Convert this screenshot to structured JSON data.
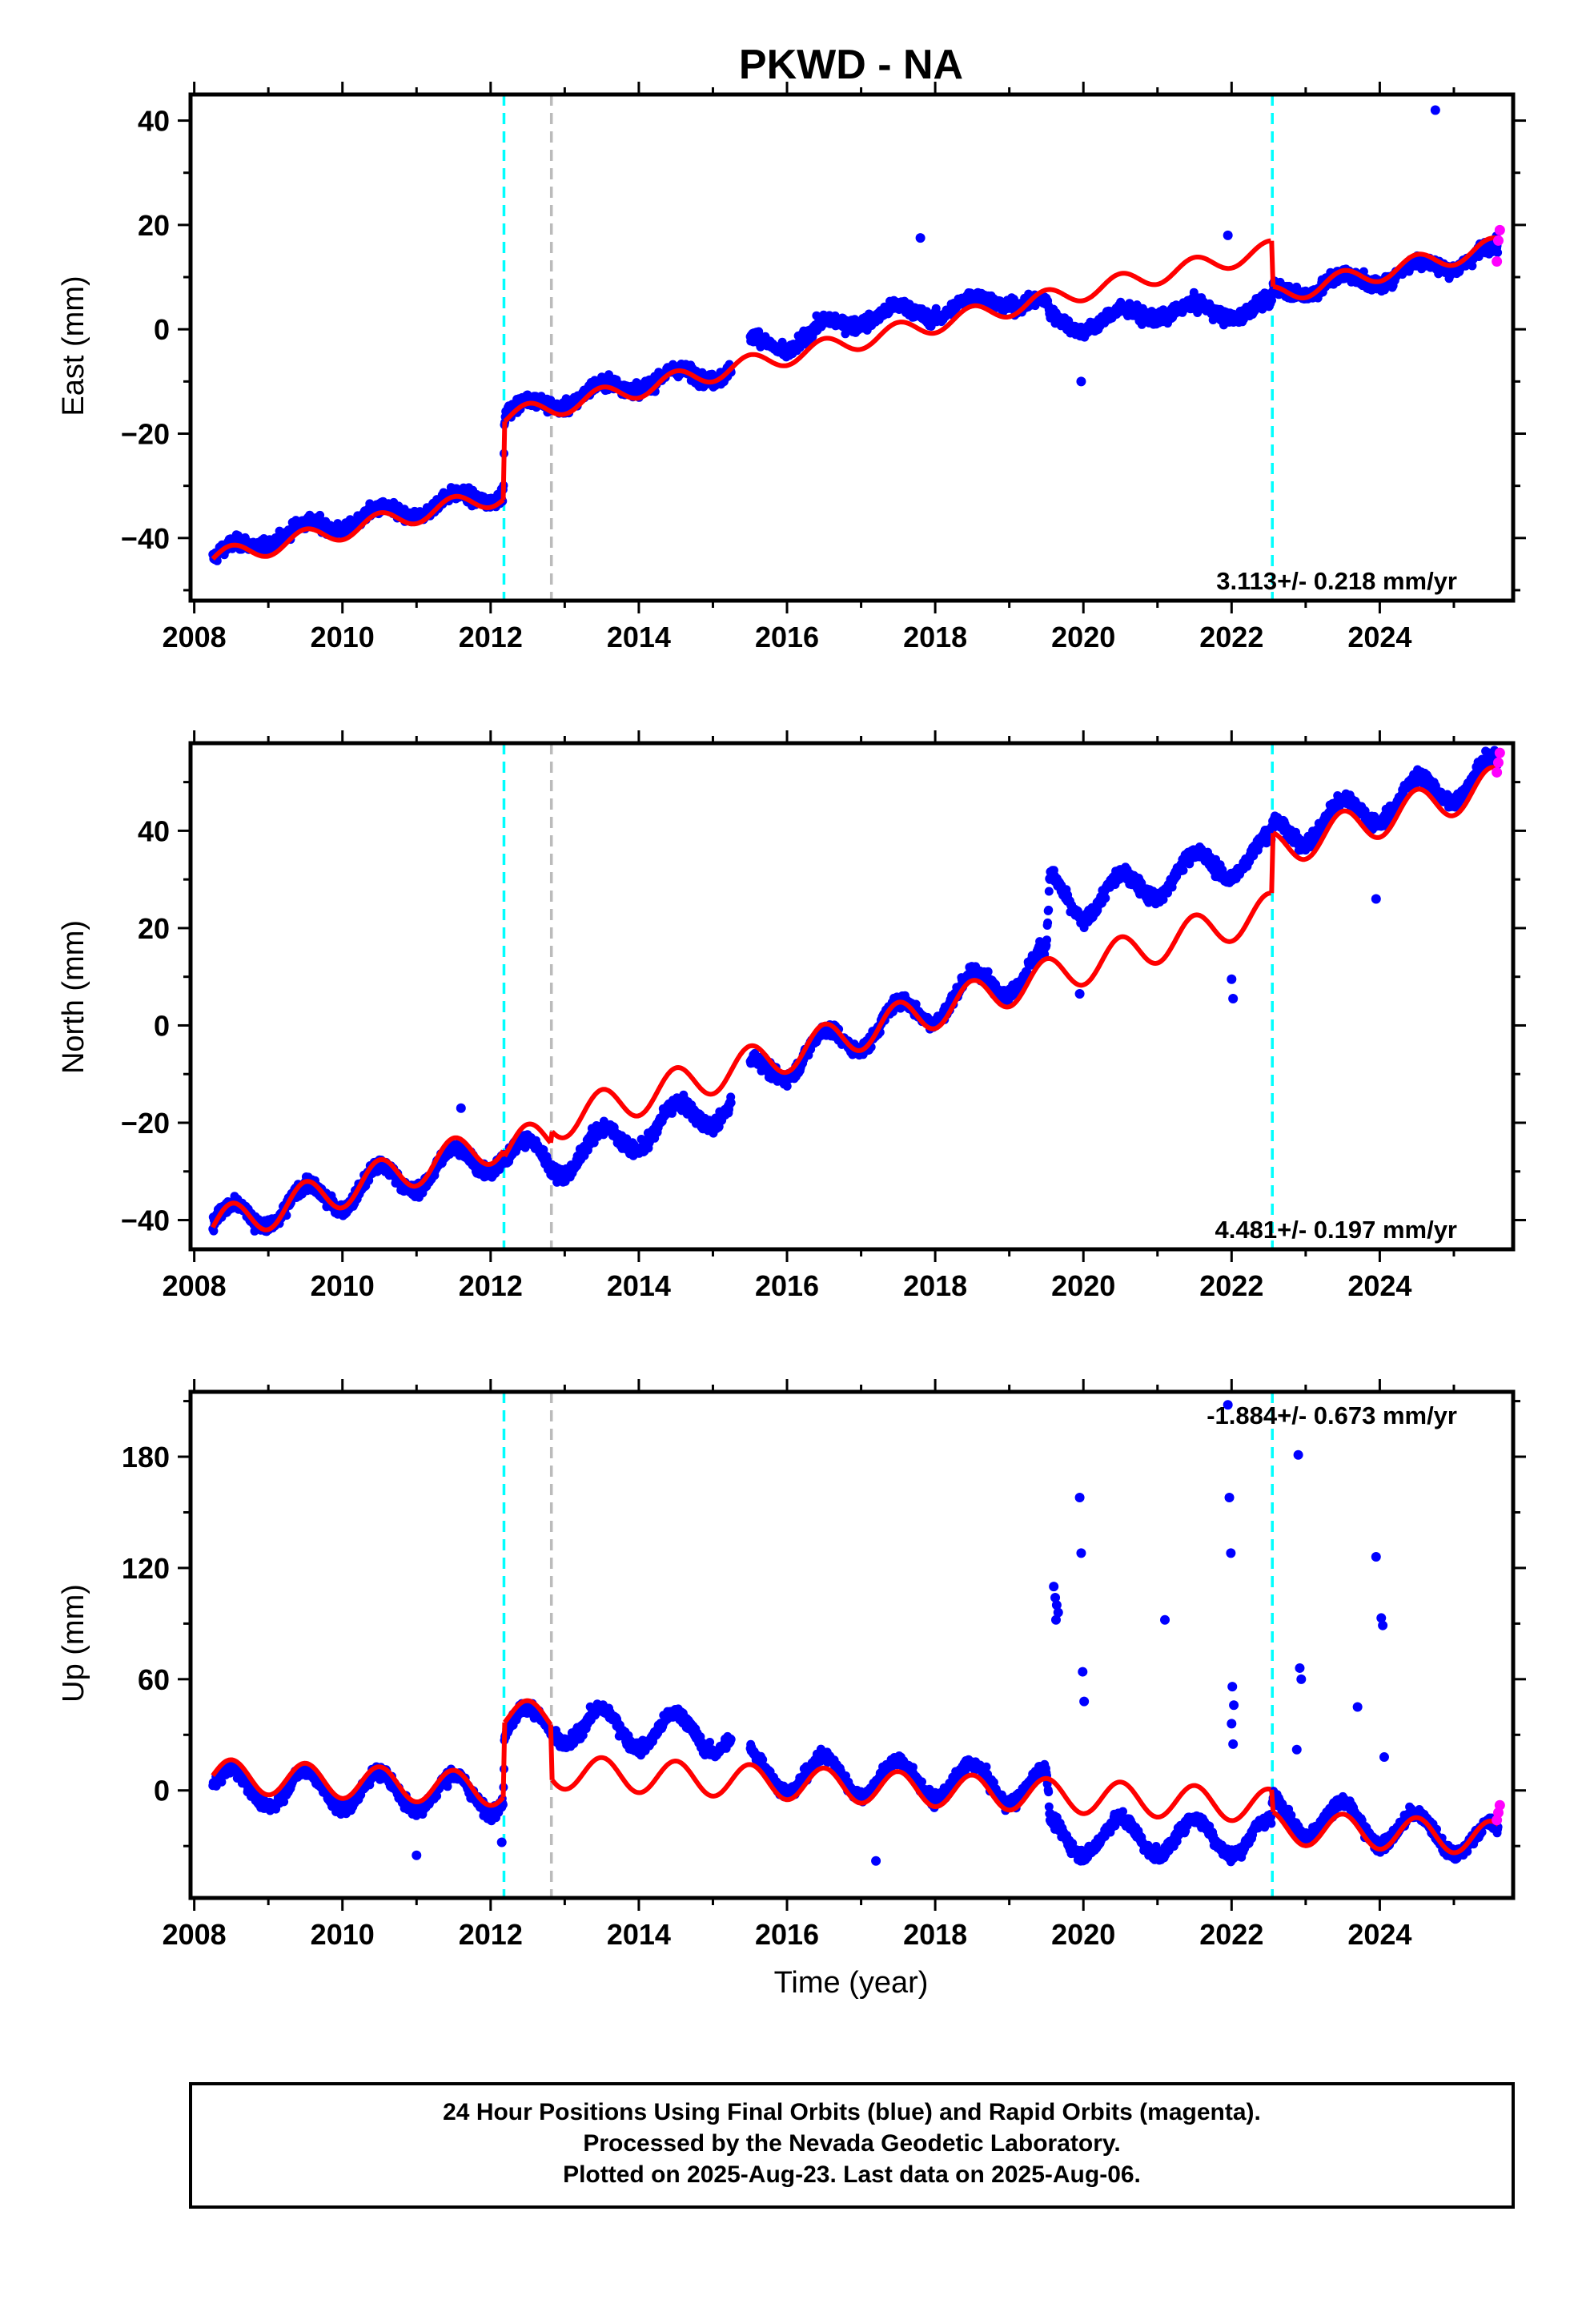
{
  "chart_data": {
    "type": "scatter",
    "title": "PKWD - NA",
    "xlabel": "Time (year)",
    "xlim": [
      2007.95,
      2025.8
    ],
    "x_ticks": [
      "2008",
      "2010",
      "2012",
      "2014",
      "2016",
      "2018",
      "2020",
      "2022",
      "2024"
    ],
    "colors": {
      "final_orbits": "#0000ff",
      "rapid_orbits": "#ff00ff",
      "model": "#ff0000",
      "equipment_change": "#00ffff",
      "other_event": "#bbbbbb"
    },
    "events": {
      "cyan_dashed": [
        2012.18,
        2022.55
      ],
      "gray_dashed": [
        2012.82
      ]
    },
    "panels": [
      {
        "id": "east",
        "ylabel": "East (mm)",
        "ylim": [
          -52,
          45
        ],
        "y_ticks": [
          "−40",
          "−20",
          "0",
          "20",
          "40"
        ],
        "rate": "3.113+/- 0.218 mm/yr",
        "rate_position": "bottom-right",
        "data_trend": [
          [
            2008.25,
            -44
          ],
          [
            2009,
            -40
          ],
          [
            2010,
            -37
          ],
          [
            2011,
            -34.5
          ],
          [
            2012.17,
            -31
          ],
          [
            2012.19,
            -16
          ],
          [
            2013,
            -13.5
          ],
          [
            2014,
            -10
          ],
          [
            2015.2,
            -8
          ],
          [
            2015.55,
            -2.5
          ],
          [
            2016,
            -3
          ],
          [
            2016.5,
            0
          ],
          [
            2017,
            2.5
          ],
          [
            2018,
            3.5
          ],
          [
            2019,
            6
          ],
          [
            2019.5,
            4
          ],
          [
            2019.55,
            1.5
          ],
          [
            2020,
            1
          ],
          [
            2021,
            3.5
          ],
          [
            2022,
            3.5
          ],
          [
            2022.54,
            4
          ],
          [
            2022.56,
            7
          ],
          [
            2023,
            8
          ],
          [
            2024,
            10
          ],
          [
            2025,
            13
          ],
          [
            2025.6,
            15
          ]
        ],
        "model": {
          "segments": [
            {
              "x0": 2008.25,
              "x1": 2012.17,
              "y0": -44,
              "slope": 3.113
            },
            {
              "x0": 2012.19,
              "x1": 2022.54,
              "y0": -17,
              "slope": 3.113
            },
            {
              "x0": 2022.56,
              "x1": 2025.6,
              "y0": 6.5,
              "slope": 3.113
            }
          ],
          "amplitude": 1.8
        },
        "outliers": [
          [
            2024.75,
            42
          ],
          [
            2017.8,
            17.5
          ],
          [
            2021.95,
            18
          ],
          [
            2019.97,
            -10
          ]
        ],
        "rapid_points": [
          [
            2025.58,
            13
          ],
          [
            2025.6,
            17
          ],
          [
            2025.62,
            19
          ]
        ]
      },
      {
        "id": "north",
        "ylabel": "North (mm)",
        "ylim": [
          -46,
          58
        ],
        "y_ticks": [
          "−40",
          "−20",
          "0",
          "20",
          "40"
        ],
        "rate": "4.481+/- 0.197 mm/yr",
        "rate_position": "bottom-right",
        "data_trend": [
          [
            2008.25,
            -41
          ],
          [
            2012.17,
            -26
          ],
          [
            2012.82,
            -28
          ],
          [
            2015.2,
            -16
          ],
          [
            2015.55,
            -10
          ],
          [
            2019.5,
            13
          ],
          [
            2019.55,
            28
          ],
          [
            2020,
            25
          ],
          [
            2021,
            30
          ],
          [
            2022.54,
            36
          ],
          [
            2022.56,
            39
          ],
          [
            2025.6,
            52
          ]
        ],
        "model": {
          "segments": [
            {
              "x0": 2008.25,
              "x1": 2012.17,
              "y0": -41.5,
              "slope": 4.481
            },
            {
              "x0": 2012.19,
              "x1": 2012.81,
              "y0": -25.5,
              "slope": 4.481
            },
            {
              "x0": 2012.83,
              "x1": 2022.54,
              "y0": -20,
              "slope": 4.481
            },
            {
              "x0": 2022.56,
              "x1": 2025.6,
              "y0": 36,
              "slope": 4.481
            }
          ],
          "amplitude": 3.8
        },
        "outliers": [
          [
            2019.95,
            6.5
          ],
          [
            2022.0,
            9.5
          ],
          [
            2022.02,
            5.5
          ],
          [
            2023.95,
            26
          ],
          [
            2011.6,
            -17
          ],
          [
            2009.0,
            -40
          ]
        ],
        "rapid_points": [
          [
            2025.58,
            52
          ],
          [
            2025.6,
            54
          ],
          [
            2025.62,
            56
          ]
        ]
      },
      {
        "id": "up",
        "ylabel": "Up (mm)",
        "ylim": [
          -58,
          215
        ],
        "y_ticks": [
          "0",
          "60",
          "120",
          "180"
        ],
        "rate": "-1.884+/- 0.673 mm/yr",
        "rate_position": "top-right",
        "data_trend": [
          [
            2008.25,
            2
          ],
          [
            2012.17,
            -2
          ],
          [
            2012.19,
            35
          ],
          [
            2013,
            35
          ],
          [
            2015.2,
            30
          ],
          [
            2015.55,
            10
          ],
          [
            2019.5,
            2
          ],
          [
            2019.55,
            -25
          ],
          [
            2022.54,
            -25
          ],
          [
            2022.56,
            -12
          ],
          [
            2025.6,
            -28
          ]
        ],
        "model": {
          "segments": [
            {
              "x0": 2008.25,
              "x1": 2012.17,
              "y0": 8,
              "slope": -1.884
            },
            {
              "x0": 2012.19,
              "x1": 2012.81,
              "y0": 40,
              "slope": -1.884
            },
            {
              "x0": 2012.83,
              "x1": 2022.54,
              "y0": 10,
              "slope": -1.884
            },
            {
              "x0": 2022.56,
              "x1": 2025.6,
              "y0": -20,
              "slope": -1.884
            }
          ],
          "amplitude": 9
        },
        "outliers": [
          [
            2019.6,
            110
          ],
          [
            2019.62,
            104
          ],
          [
            2019.64,
            100
          ],
          [
            2019.66,
            96
          ],
          [
            2019.63,
            92
          ],
          [
            2019.95,
            158
          ],
          [
            2019.97,
            128
          ],
          [
            2019.99,
            64
          ],
          [
            2020.01,
            48
          ],
          [
            2021.1,
            92
          ],
          [
            2021.95,
            208
          ],
          [
            2021.97,
            158
          ],
          [
            2021.99,
            128
          ],
          [
            2022.01,
            56
          ],
          [
            2022.03,
            46
          ],
          [
            2022.0,
            36
          ],
          [
            2022.02,
            25
          ],
          [
            2022.9,
            181
          ],
          [
            2022.92,
            66
          ],
          [
            2022.94,
            60
          ],
          [
            2022.88,
            22
          ],
          [
            2023.7,
            45
          ],
          [
            2023.95,
            126
          ],
          [
            2024.02,
            93
          ],
          [
            2024.04,
            89
          ],
          [
            2024.06,
            18
          ],
          [
            2011.0,
            -35
          ],
          [
            2012.15,
            -28
          ],
          [
            2017.2,
            -38
          ]
        ],
        "rapid_points": [
          [
            2025.58,
            -16
          ],
          [
            2025.6,
            -12
          ],
          [
            2025.62,
            -8
          ]
        ]
      }
    ],
    "footer": [
      "24 Hour Positions Using Final Orbits (blue) and Rapid Orbits (magenta).",
      "Processed by the Nevada Geodetic Laboratory.",
      "Plotted on 2025-Aug-23. Last data on 2025-Aug-06."
    ]
  }
}
